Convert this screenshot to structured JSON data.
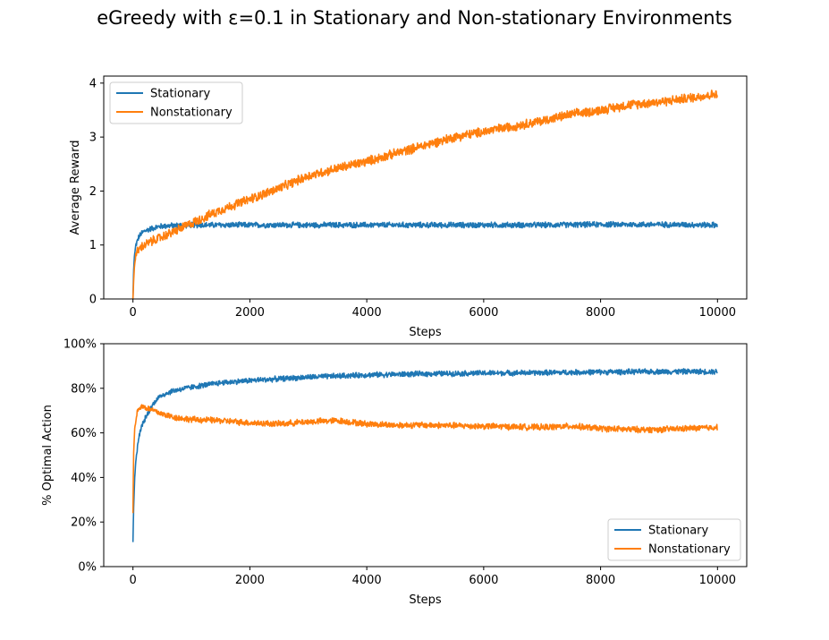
{
  "figure": {
    "title": "eGreedy with ε=0.1 in Stationary and Non-stationary Environments"
  },
  "colors": {
    "stationary": "#1f77b4",
    "nonstationary": "#ff7f0e"
  },
  "chart_data": [
    {
      "type": "line",
      "xlabel": "Steps",
      "ylabel": "Average Reward",
      "xlim": [
        -500,
        10500
      ],
      "ylim": [
        0,
        4.13
      ],
      "xticks": [
        0,
        2000,
        4000,
        6000,
        8000,
        10000
      ],
      "yticks": [
        0,
        1,
        2,
        3,
        4
      ],
      "ytick_labels": [
        "0",
        "1",
        "2",
        "3",
        "4"
      ],
      "xtick_labels": [
        "0",
        "2000",
        "4000",
        "6000",
        "8000",
        "10000"
      ],
      "legend": "top-left",
      "series": [
        {
          "name": "Stationary",
          "x": [
            0,
            10,
            25,
            50,
            100,
            150,
            200,
            300,
            400,
            500,
            700,
            1000,
            2000,
            3000,
            4000,
            5000,
            6000,
            7000,
            8000,
            9000,
            10000
          ],
          "values": [
            0.0,
            0.5,
            0.8,
            1.0,
            1.15,
            1.22,
            1.26,
            1.3,
            1.33,
            1.35,
            1.36,
            1.37,
            1.37,
            1.37,
            1.37,
            1.37,
            1.37,
            1.37,
            1.38,
            1.38,
            1.37
          ],
          "noise": 0.03
        },
        {
          "name": "Nonstationary",
          "x": [
            0,
            10,
            25,
            50,
            100,
            200,
            300,
            500,
            700,
            1000,
            1500,
            2000,
            2500,
            3000,
            3500,
            4000,
            4500,
            5000,
            5500,
            6000,
            6500,
            7000,
            7500,
            8000,
            8500,
            9000,
            9500,
            10000
          ],
          "values": [
            0.0,
            0.3,
            0.6,
            0.82,
            0.92,
            1.0,
            1.06,
            1.15,
            1.25,
            1.4,
            1.65,
            1.85,
            2.05,
            2.28,
            2.42,
            2.55,
            2.7,
            2.85,
            3.0,
            3.1,
            3.2,
            3.3,
            3.42,
            3.5,
            3.6,
            3.65,
            3.72,
            3.8
          ],
          "noise": 0.05
        }
      ]
    },
    {
      "type": "line",
      "xlabel": "Steps",
      "ylabel": "% Optimal Action",
      "xlim": [
        -500,
        10500
      ],
      "ylim": [
        0,
        100
      ],
      "xticks": [
        0,
        2000,
        4000,
        6000,
        8000,
        10000
      ],
      "yticks": [
        0,
        20,
        40,
        60,
        80,
        100
      ],
      "ytick_labels": [
        "0%",
        "20%",
        "40%",
        "60%",
        "80%",
        "100%"
      ],
      "xtick_labels": [
        "0",
        "2000",
        "4000",
        "6000",
        "8000",
        "10000"
      ],
      "legend": "bottom-right",
      "series": [
        {
          "name": "Stationary",
          "x": [
            0,
            10,
            30,
            60,
            100,
            150,
            200,
            300,
            400,
            500,
            700,
            1000,
            1500,
            2000,
            3000,
            4000,
            5000,
            6000,
            7000,
            8000,
            9000,
            10000
          ],
          "values": [
            11,
            25,
            40,
            50,
            58,
            63,
            66,
            71,
            75,
            77,
            79,
            80.5,
            82.5,
            83.5,
            85,
            86,
            86.5,
            86.8,
            87,
            87.3,
            87.5,
            87.5
          ],
          "noise": 0.7
        },
        {
          "name": "Nonstationary",
          "x": [
            0,
            10,
            30,
            60,
            100,
            150,
            200,
            300,
            400,
            500,
            700,
            1000,
            1500,
            2000,
            2500,
            3000,
            3500,
            4000,
            4500,
            5000,
            6000,
            7000,
            7500,
            8000,
            8500,
            9000,
            9500,
            10000
          ],
          "values": [
            24,
            50,
            62,
            68,
            71,
            72,
            71.5,
            70.5,
            69.5,
            68.5,
            67,
            66,
            65.5,
            64.5,
            64,
            65,
            65.5,
            64,
            63.5,
            63.5,
            63,
            62.5,
            63,
            62,
            61.5,
            61.5,
            62,
            62.5
          ],
          "noise": 0.8
        }
      ]
    }
  ]
}
